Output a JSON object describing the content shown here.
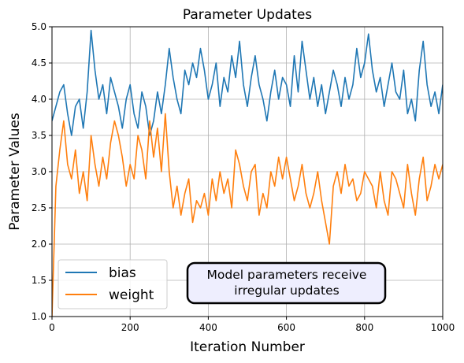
{
  "chart_data": {
    "type": "line",
    "title": "Parameter Updates",
    "xlabel": "Iteration Number",
    "ylabel": "Parameter Values",
    "xlim": [
      0,
      1000
    ],
    "ylim": [
      1.0,
      5.0
    ],
    "xticks": [
      0,
      200,
      400,
      600,
      800,
      1000
    ],
    "yticks": [
      1.0,
      1.5,
      2.0,
      2.5,
      3.0,
      3.5,
      4.0,
      4.5,
      5.0
    ],
    "xtick_labels": [
      "0",
      "200",
      "400",
      "600",
      "800",
      "1000"
    ],
    "ytick_labels": [
      "1.0",
      "1.5",
      "2.0",
      "2.5",
      "3.0",
      "3.5",
      "4.0",
      "4.5",
      "5.0"
    ],
    "grid": true,
    "legend_position": "lower-left",
    "annotation": {
      "lines": [
        "Model parameters receive",
        "irregular updates"
      ],
      "position": "lower-center"
    },
    "series": [
      {
        "name": "bias",
        "color": "#1f77b4",
        "x": [
          0,
          10,
          20,
          30,
          40,
          50,
          60,
          70,
          80,
          90,
          100,
          110,
          120,
          130,
          140,
          150,
          160,
          170,
          180,
          190,
          200,
          210,
          220,
          230,
          240,
          250,
          260,
          270,
          280,
          290,
          300,
          310,
          320,
          330,
          340,
          350,
          360,
          370,
          380,
          390,
          400,
          410,
          420,
          430,
          440,
          450,
          460,
          470,
          480,
          490,
          500,
          510,
          520,
          530,
          540,
          550,
          560,
          570,
          580,
          590,
          600,
          610,
          620,
          630,
          640,
          650,
          660,
          670,
          680,
          690,
          700,
          710,
          720,
          730,
          740,
          750,
          760,
          770,
          780,
          790,
          800,
          810,
          820,
          830,
          840,
          850,
          860,
          870,
          880,
          890,
          900,
          910,
          920,
          930,
          940,
          950,
          960,
          970,
          980,
          990,
          1000
        ],
        "values": [
          3.7,
          3.9,
          4.1,
          4.2,
          3.8,
          3.5,
          3.9,
          4.0,
          3.6,
          4.1,
          4.95,
          4.4,
          4.0,
          4.2,
          3.8,
          4.3,
          4.1,
          3.9,
          3.6,
          4.0,
          4.2,
          3.8,
          3.6,
          4.1,
          3.9,
          3.5,
          3.7,
          4.1,
          3.8,
          4.2,
          4.7,
          4.3,
          4.0,
          3.8,
          4.4,
          4.2,
          4.5,
          4.3,
          4.7,
          4.4,
          4.0,
          4.2,
          4.5,
          3.9,
          4.3,
          4.1,
          4.6,
          4.3,
          4.8,
          4.2,
          3.9,
          4.3,
          4.6,
          4.2,
          4.0,
          3.7,
          4.1,
          4.4,
          4.0,
          4.3,
          4.2,
          3.9,
          4.6,
          4.1,
          4.8,
          4.4,
          4.0,
          4.3,
          3.9,
          4.2,
          3.8,
          4.1,
          4.4,
          4.2,
          3.9,
          4.3,
          4.0,
          4.2,
          4.7,
          4.3,
          4.5,
          4.9,
          4.4,
          4.1,
          4.3,
          3.9,
          4.2,
          4.5,
          4.1,
          4.0,
          4.4,
          3.8,
          4.0,
          3.7,
          4.4,
          4.8,
          4.2,
          3.9,
          4.1,
          3.8,
          4.2
        ]
      },
      {
        "name": "weight",
        "color": "#ff7f0e",
        "x": [
          0,
          10,
          20,
          30,
          40,
          50,
          60,
          70,
          80,
          90,
          100,
          110,
          120,
          130,
          140,
          150,
          160,
          170,
          180,
          190,
          200,
          210,
          220,
          230,
          240,
          250,
          260,
          270,
          280,
          290,
          300,
          310,
          320,
          330,
          340,
          350,
          360,
          370,
          380,
          390,
          400,
          410,
          420,
          430,
          440,
          450,
          460,
          470,
          480,
          490,
          500,
          510,
          520,
          530,
          540,
          550,
          560,
          570,
          580,
          590,
          600,
          610,
          620,
          630,
          640,
          650,
          660,
          670,
          680,
          690,
          700,
          710,
          720,
          730,
          740,
          750,
          760,
          770,
          780,
          790,
          800,
          810,
          820,
          830,
          840,
          850,
          860,
          870,
          880,
          890,
          900,
          910,
          920,
          930,
          940,
          950,
          960,
          970,
          980,
          990,
          1000
        ],
        "values": [
          1.0,
          2.8,
          3.3,
          3.7,
          3.1,
          2.9,
          3.3,
          2.7,
          3.0,
          2.6,
          3.5,
          3.1,
          2.8,
          3.2,
          2.9,
          3.4,
          3.7,
          3.5,
          3.2,
          2.8,
          3.1,
          2.9,
          3.5,
          3.3,
          2.9,
          3.7,
          3.2,
          3.6,
          3.0,
          3.8,
          3.0,
          2.5,
          2.8,
          2.4,
          2.7,
          2.9,
          2.3,
          2.6,
          2.5,
          2.7,
          2.4,
          2.9,
          2.6,
          3.0,
          2.7,
          2.9,
          2.5,
          3.3,
          3.1,
          2.8,
          2.6,
          3.0,
          3.1,
          2.4,
          2.7,
          2.5,
          3.0,
          2.8,
          3.2,
          2.9,
          3.2,
          2.9,
          2.6,
          2.8,
          3.1,
          2.7,
          2.5,
          2.7,
          3.0,
          2.6,
          2.3,
          2.0,
          2.8,
          3.0,
          2.7,
          3.1,
          2.8,
          2.9,
          2.6,
          2.7,
          3.0,
          2.9,
          2.8,
          2.5,
          3.0,
          2.6,
          2.4,
          3.0,
          2.9,
          2.7,
          2.5,
          3.1,
          2.7,
          2.4,
          2.9,
          3.2,
          2.6,
          2.8,
          3.1,
          2.9,
          3.1
        ]
      }
    ]
  }
}
